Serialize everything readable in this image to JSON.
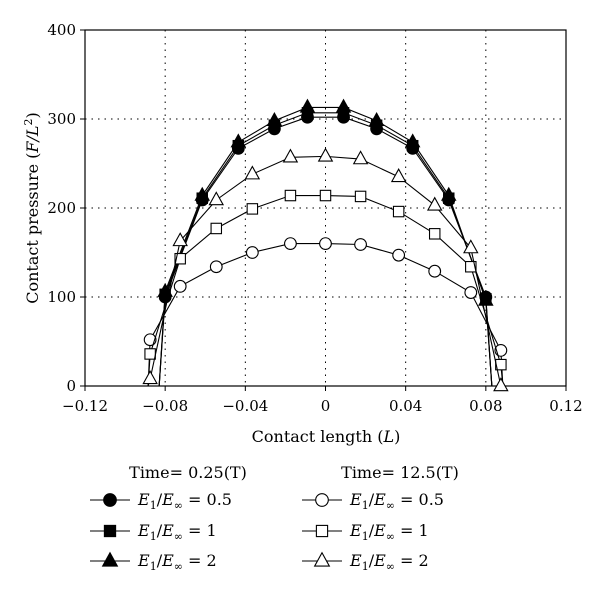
{
  "chart_data": {
    "type": "line",
    "title": "",
    "xlabel_main": "Contact length",
    "xlabel_unit": "L",
    "ylabel_main": "Contact pressure",
    "ylabel_unit_base": "F/L",
    "ylabel_unit_exp": "2",
    "xlim": [
      -0.12,
      0.12
    ],
    "ylim": [
      0,
      400
    ],
    "xticks": [
      -0.12,
      -0.08,
      -0.04,
      0,
      0.04,
      0.08,
      0.12
    ],
    "xtick_labels": [
      "−0.12",
      "−0.08",
      "−0.04",
      "0",
      "0.04",
      "0.08",
      "0.12"
    ],
    "yticks": [
      0,
      100,
      200,
      300,
      400
    ],
    "ytick_labels": [
      "0",
      "100",
      "200",
      "300",
      "400"
    ],
    "grid": "dotted",
    "legend_position": "below",
    "legend_groups": [
      {
        "heading": "Time= 0.25(T)"
      },
      {
        "heading": "Time= 12.5(T)"
      }
    ],
    "series": [
      {
        "name": "E1/E∞ = 0.5",
        "name_ratio": "0.5",
        "group": 0,
        "marker": "circle",
        "filled": true,
        "x": [
          -0.08,
          -0.0615,
          -0.0435,
          -0.0255,
          -0.009,
          0.009,
          0.0255,
          0.0435,
          0.0615,
          0.08
        ],
        "y": [
          100,
          209,
          267,
          289,
          302,
          302,
          289,
          267,
          209,
          100
        ]
      },
      {
        "name": "E1/E∞ = 1",
        "name_ratio": "1",
        "group": 0,
        "marker": "square",
        "filled": true,
        "x": [
          -0.08,
          -0.0615,
          -0.0435,
          -0.0255,
          -0.009,
          0.009,
          0.0255,
          0.0435,
          0.0615,
          0.08
        ],
        "y": [
          103,
          211,
          270,
          293,
          307,
          307,
          293,
          270,
          211,
          98
        ]
      },
      {
        "name": "E1/E∞ = 2",
        "name_ratio": "2",
        "group": 0,
        "marker": "triangle",
        "filled": true,
        "x": [
          -0.08,
          -0.0615,
          -0.0435,
          -0.0255,
          -0.009,
          0.009,
          0.0255,
          0.0435,
          0.0615,
          0.08
        ],
        "y": [
          106,
          214,
          274,
          298,
          313,
          313,
          298,
          274,
          214,
          96
        ]
      },
      {
        "name": "E1/E∞ = 0.5",
        "name_ratio": "0.5",
        "group": 1,
        "marker": "circle",
        "filled": false,
        "x": [
          -0.0875,
          -0.0725,
          -0.0545,
          -0.0365,
          -0.0175,
          0,
          0.0175,
          0.0365,
          0.0545,
          0.0725,
          0.0875
        ],
        "y": [
          52,
          112,
          134,
          150,
          160,
          160,
          159,
          147,
          129,
          105,
          40
        ]
      },
      {
        "name": "E1/E∞ = 1",
        "name_ratio": "1",
        "group": 1,
        "marker": "square",
        "filled": false,
        "x": [
          -0.0875,
          -0.0725,
          -0.0545,
          -0.0365,
          -0.0175,
          0,
          0.0175,
          0.0365,
          0.0545,
          0.0725,
          0.0875
        ],
        "y": [
          36,
          143,
          177,
          199,
          214,
          214,
          213,
          196,
          171,
          134,
          24
        ]
      },
      {
        "name": "E1/E∞ = 2",
        "name_ratio": "2",
        "group": 1,
        "marker": "triangle",
        "filled": false,
        "x": [
          -0.0875,
          -0.0725,
          -0.0545,
          -0.0365,
          -0.0175,
          0,
          0.0175,
          0.0365,
          0.0545,
          0.0725,
          0.0875
        ],
        "y": [
          8,
          163,
          209,
          238,
          257,
          258,
          255,
          235,
          203,
          155,
          0
        ]
      }
    ]
  }
}
